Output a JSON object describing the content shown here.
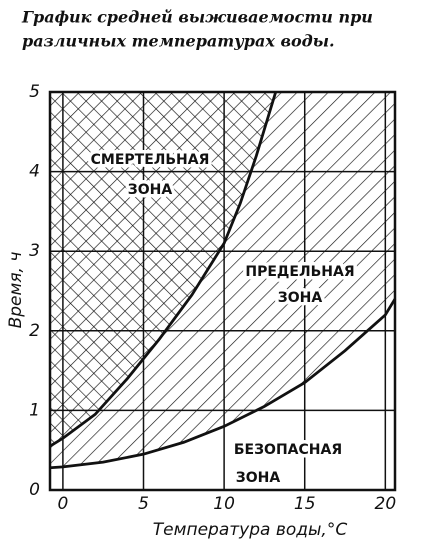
{
  "chart_data": {
    "type": "line",
    "title": [
      "График средней выживаемости при",
      "различных температурах воды."
    ],
    "x_label": "Температура воды,°С",
    "y_label": "Время, ч",
    "series": [
      {
        "color": "#111111",
        "x": [
          -0.8,
          0,
          2,
          4,
          6,
          8,
          10,
          11,
          12,
          13.2
        ],
        "values": [
          0.55,
          0.65,
          0.95,
          1.4,
          1.9,
          2.45,
          3.1,
          3.6,
          4.2,
          5.0
        ]
      },
      {
        "color": "#111111",
        "x": [
          -0.8,
          0,
          2.5,
          5,
          7.5,
          10,
          12.5,
          15,
          17.5,
          20,
          20.6
        ],
        "values": [
          0.28,
          0.29,
          0.35,
          0.45,
          0.6,
          0.8,
          1.05,
          1.35,
          1.75,
          2.2,
          2.4
        ]
      }
    ],
    "annotations": [
      [
        "СМЕРТЕЛЬНАЯ",
        "ЗОНА"
      ],
      [
        "ПРЕДЕЛЬНАЯ",
        "ЗОНА"
      ],
      [
        "БЕЗОПАСНАЯ",
        "ЗОНА"
      ]
    ],
    "xlim": [
      -0.8,
      20.6
    ],
    "ylim": [
      0,
      5
    ],
    "xticks": [
      0,
      5,
      10,
      15,
      20
    ],
    "yticks": [
      0,
      1,
      2,
      3,
      4,
      5
    ],
    "grid": true
  }
}
